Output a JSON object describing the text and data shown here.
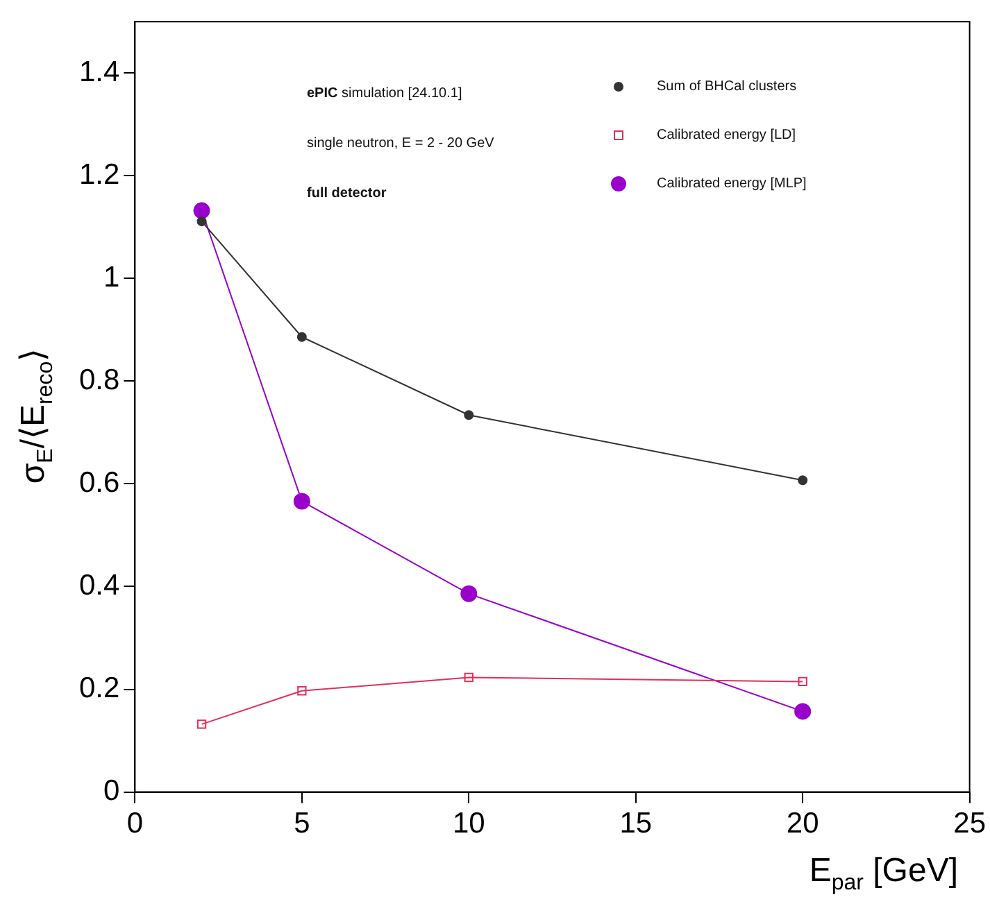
{
  "chart_data": {
    "type": "line",
    "xlabel": "E$_{par}$ [GeV]",
    "ylabel": "σ$_{E}$/⟨E$_{reco}$⟩",
    "annotations": [
      "ePIC simulation [24.10.1]",
      "single neutron, E = 2 - 20 GeV",
      "full detector"
    ],
    "x": [
      2,
      5,
      10,
      20
    ],
    "series": [
      {
        "name": "Sum of BHCal clusters",
        "color": "#333333",
        "marker": "circle",
        "values": [
          1.111,
          0.886,
          0.734,
          0.607
        ]
      },
      {
        "name": "Calibrated energy [LD]",
        "color": "#e0305a",
        "marker": "square",
        "values": [
          0.132,
          0.197,
          0.223,
          0.215
        ]
      },
      {
        "name": "Calibrated energy [MLP]",
        "color": "#9900cc",
        "marker": "circle",
        "values": [
          1.132,
          0.566,
          0.386,
          0.157
        ]
      }
    ],
    "xlim": [
      0,
      25
    ],
    "xticks": [
      0,
      5,
      10,
      15,
      20,
      25
    ],
    "ylim": [
      0,
      1.5
    ],
    "yticks": [
      0,
      0.2,
      0.4,
      0.6,
      0.8,
      1,
      1.2,
      1.4
    ],
    "legend": "top right"
  }
}
